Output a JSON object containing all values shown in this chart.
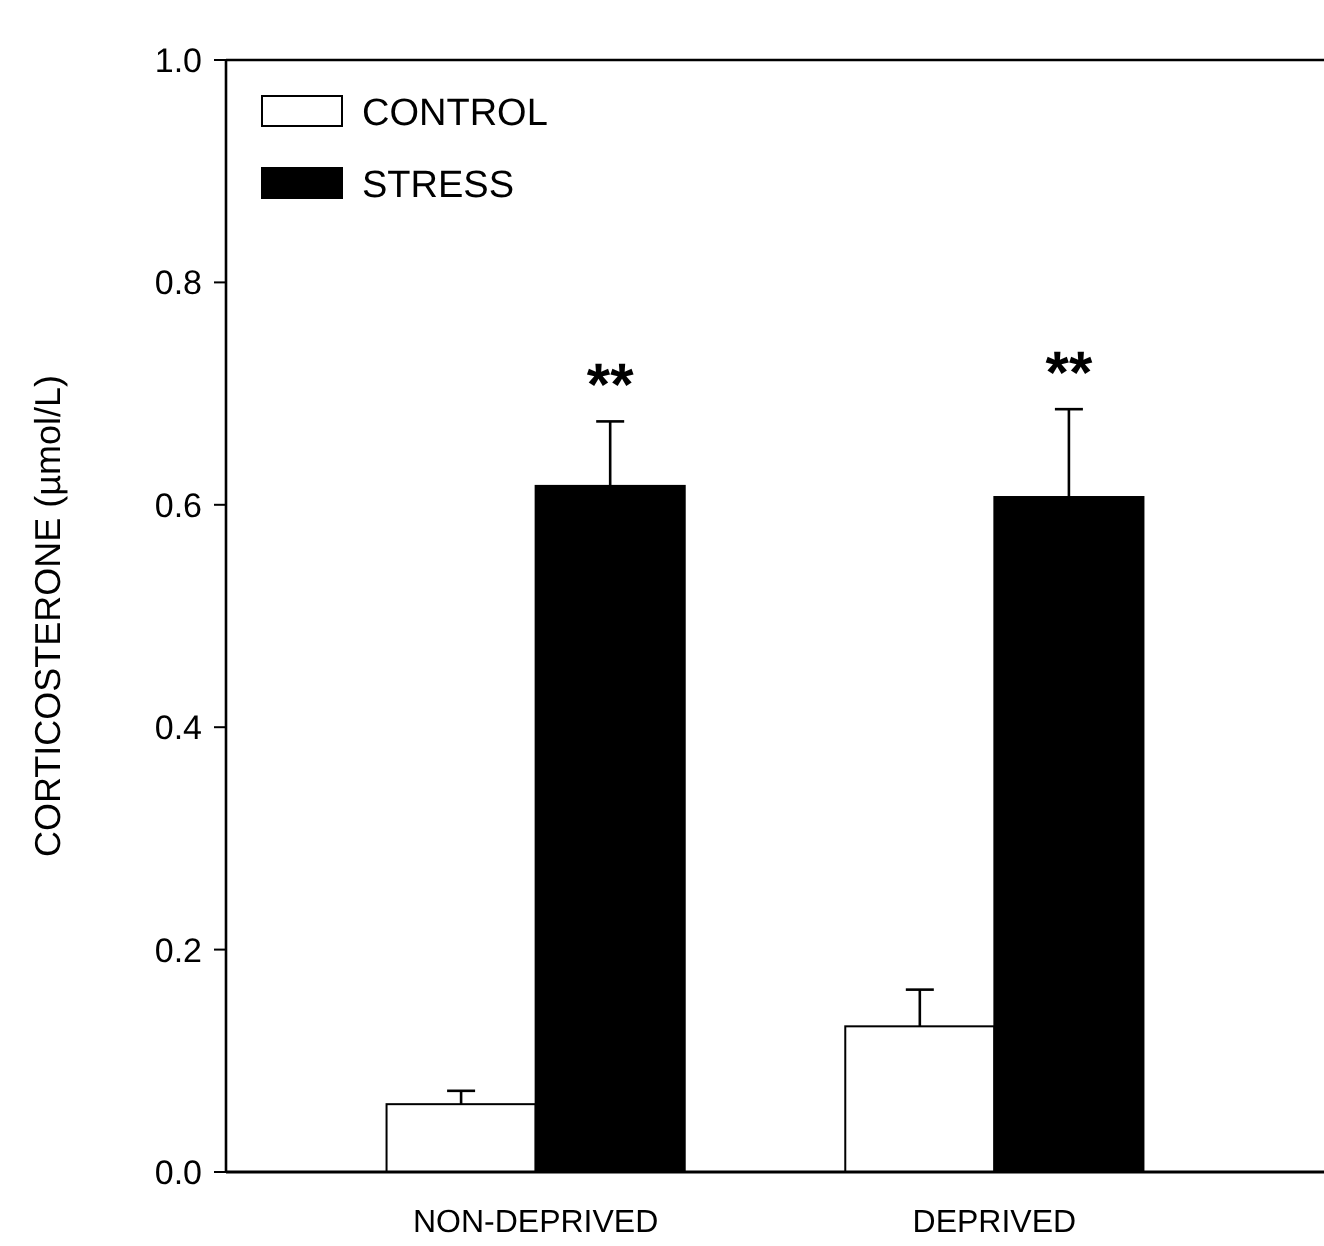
{
  "chart_data": {
    "type": "bar",
    "ylabel": "CORTICOSTERONE (µmol/L)",
    "categories": [
      "NON-DEPRIVED",
      "DEPRIVED"
    ],
    "series": [
      {
        "name": "CONTROL",
        "color": "#ffffff",
        "values": [
          0.061,
          0.131
        ],
        "errors": [
          [
            0.061,
            0.073
          ],
          [
            0.131,
            0.164
          ]
        ]
      },
      {
        "name": "STRESS",
        "color": "#000000",
        "values": [
          0.617,
          0.607
        ],
        "errors": [
          [
            0.617,
            0.675
          ],
          [
            0.607,
            0.686
          ]
        ]
      }
    ],
    "ylim": [
      0,
      1.0
    ],
    "yticks": [
      {
        "value": 0,
        "label": "0.0"
      },
      {
        "value": 0.2,
        "label": "0.2"
      },
      {
        "value": 0.4,
        "label": "0.4"
      },
      {
        "value": 0.6,
        "label": "0.6"
      },
      {
        "value": 0.8,
        "label": "0.8"
      },
      {
        "value": 1.0,
        "label": "1.0"
      }
    ],
    "annotations": [
      {
        "text": "**",
        "x": "NON-DEPRIVED",
        "y": 0.617
      },
      {
        "text": "**",
        "x": "DEPRIVED",
        "y": 0.607
      }
    ],
    "legend": "top left",
    "grid": false
  }
}
